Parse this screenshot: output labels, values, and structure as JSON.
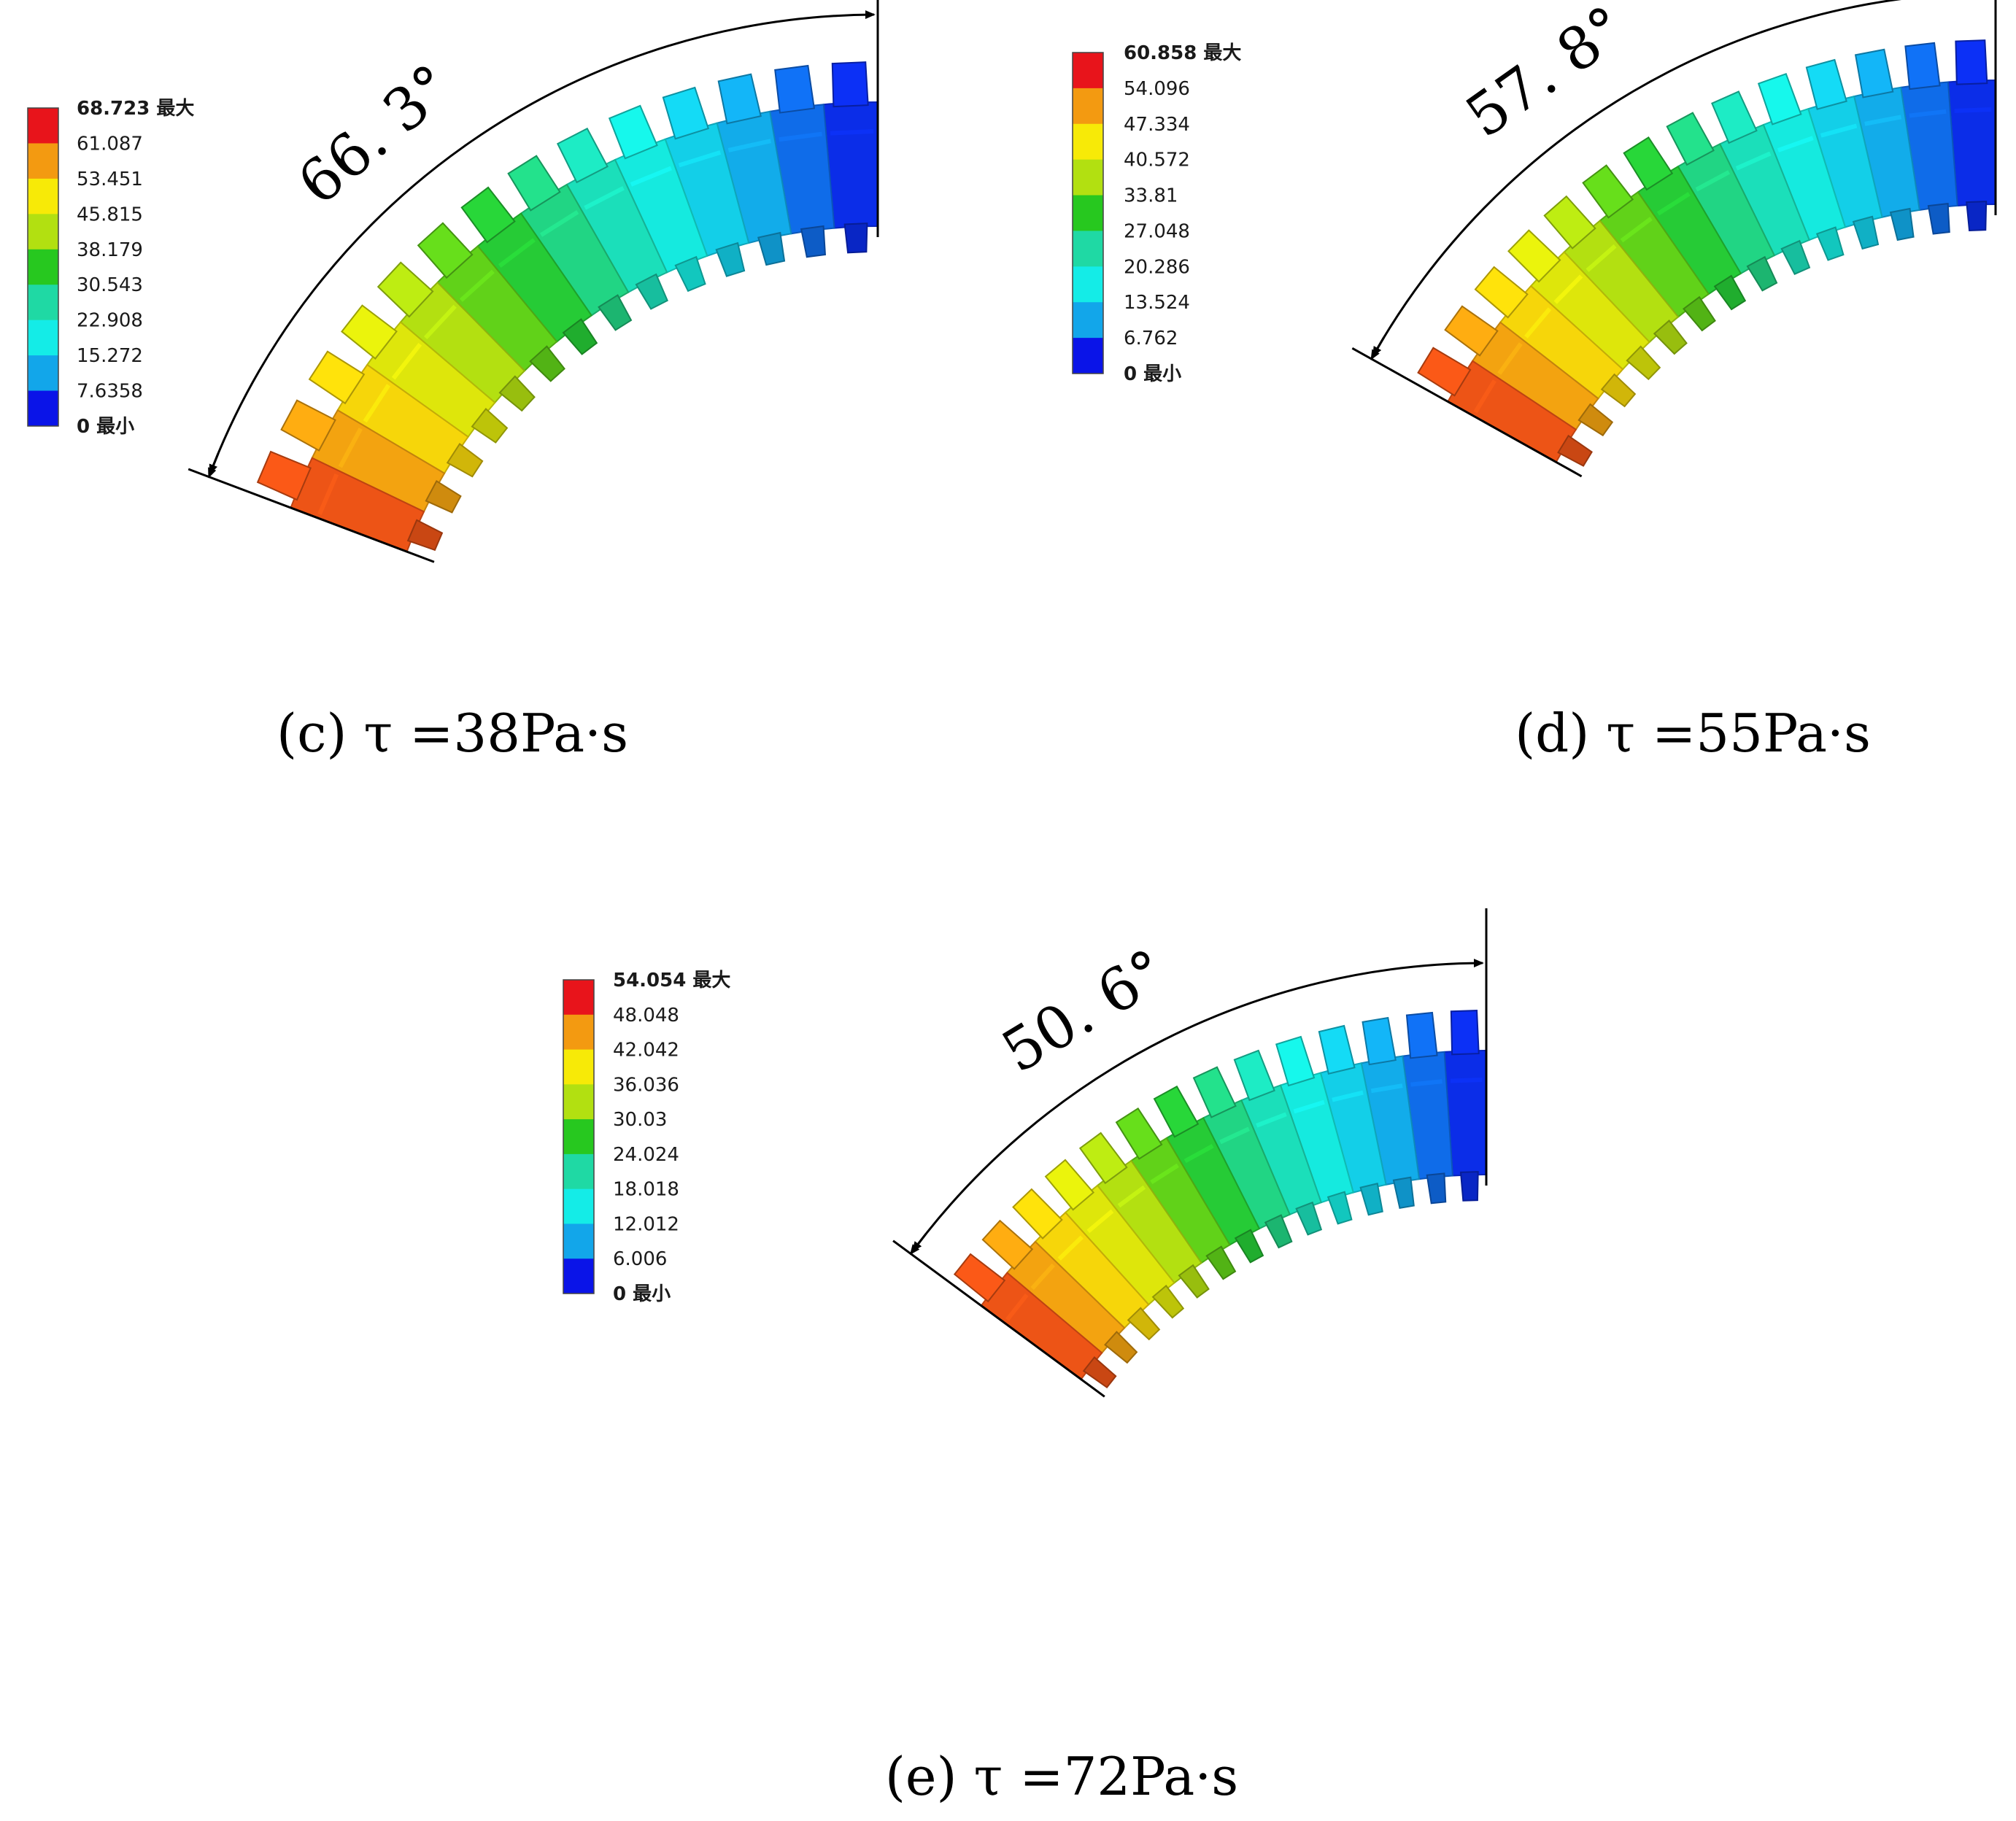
{
  "panels": [
    {
      "caption": "(c) τ =38Pa·s",
      "angle_label": "66. 3°",
      "bend_angle_deg": 66.3,
      "legend": {
        "max_label": "68.723 最大",
        "ticks": [
          "61.087",
          "53.451",
          "45.815",
          "38.179",
          "30.543",
          "22.908",
          "15.272",
          "7.6358"
        ],
        "min_label": "0 最小"
      }
    },
    {
      "caption": "(d) τ =55Pa·s",
      "angle_label": "57. 8°",
      "bend_angle_deg": 57.8,
      "legend": {
        "max_label": "60.858 最大",
        "ticks": [
          "54.096",
          "47.334",
          "40.572",
          "33.81",
          "27.048",
          "20.286",
          "13.524",
          "6.762"
        ],
        "min_label": "0 最小"
      }
    },
    {
      "caption": "(e) τ =72Pa·s",
      "angle_label": "50. 6°",
      "bend_angle_deg": 50.6,
      "legend": {
        "max_label": "54.054 最大",
        "ticks": [
          "48.048",
          "42.042",
          "36.036",
          "30.03",
          "24.024",
          "18.018",
          "12.012",
          "6.006"
        ],
        "min_label": "0 最小"
      }
    }
  ],
  "colorscale": [
    "#e8141b",
    "#f39a11",
    "#f7ea07",
    "#b2e011",
    "#27c81f",
    "#1fd9a4",
    "#14ece7",
    "#12a6ea",
    "#0a14e8"
  ]
}
